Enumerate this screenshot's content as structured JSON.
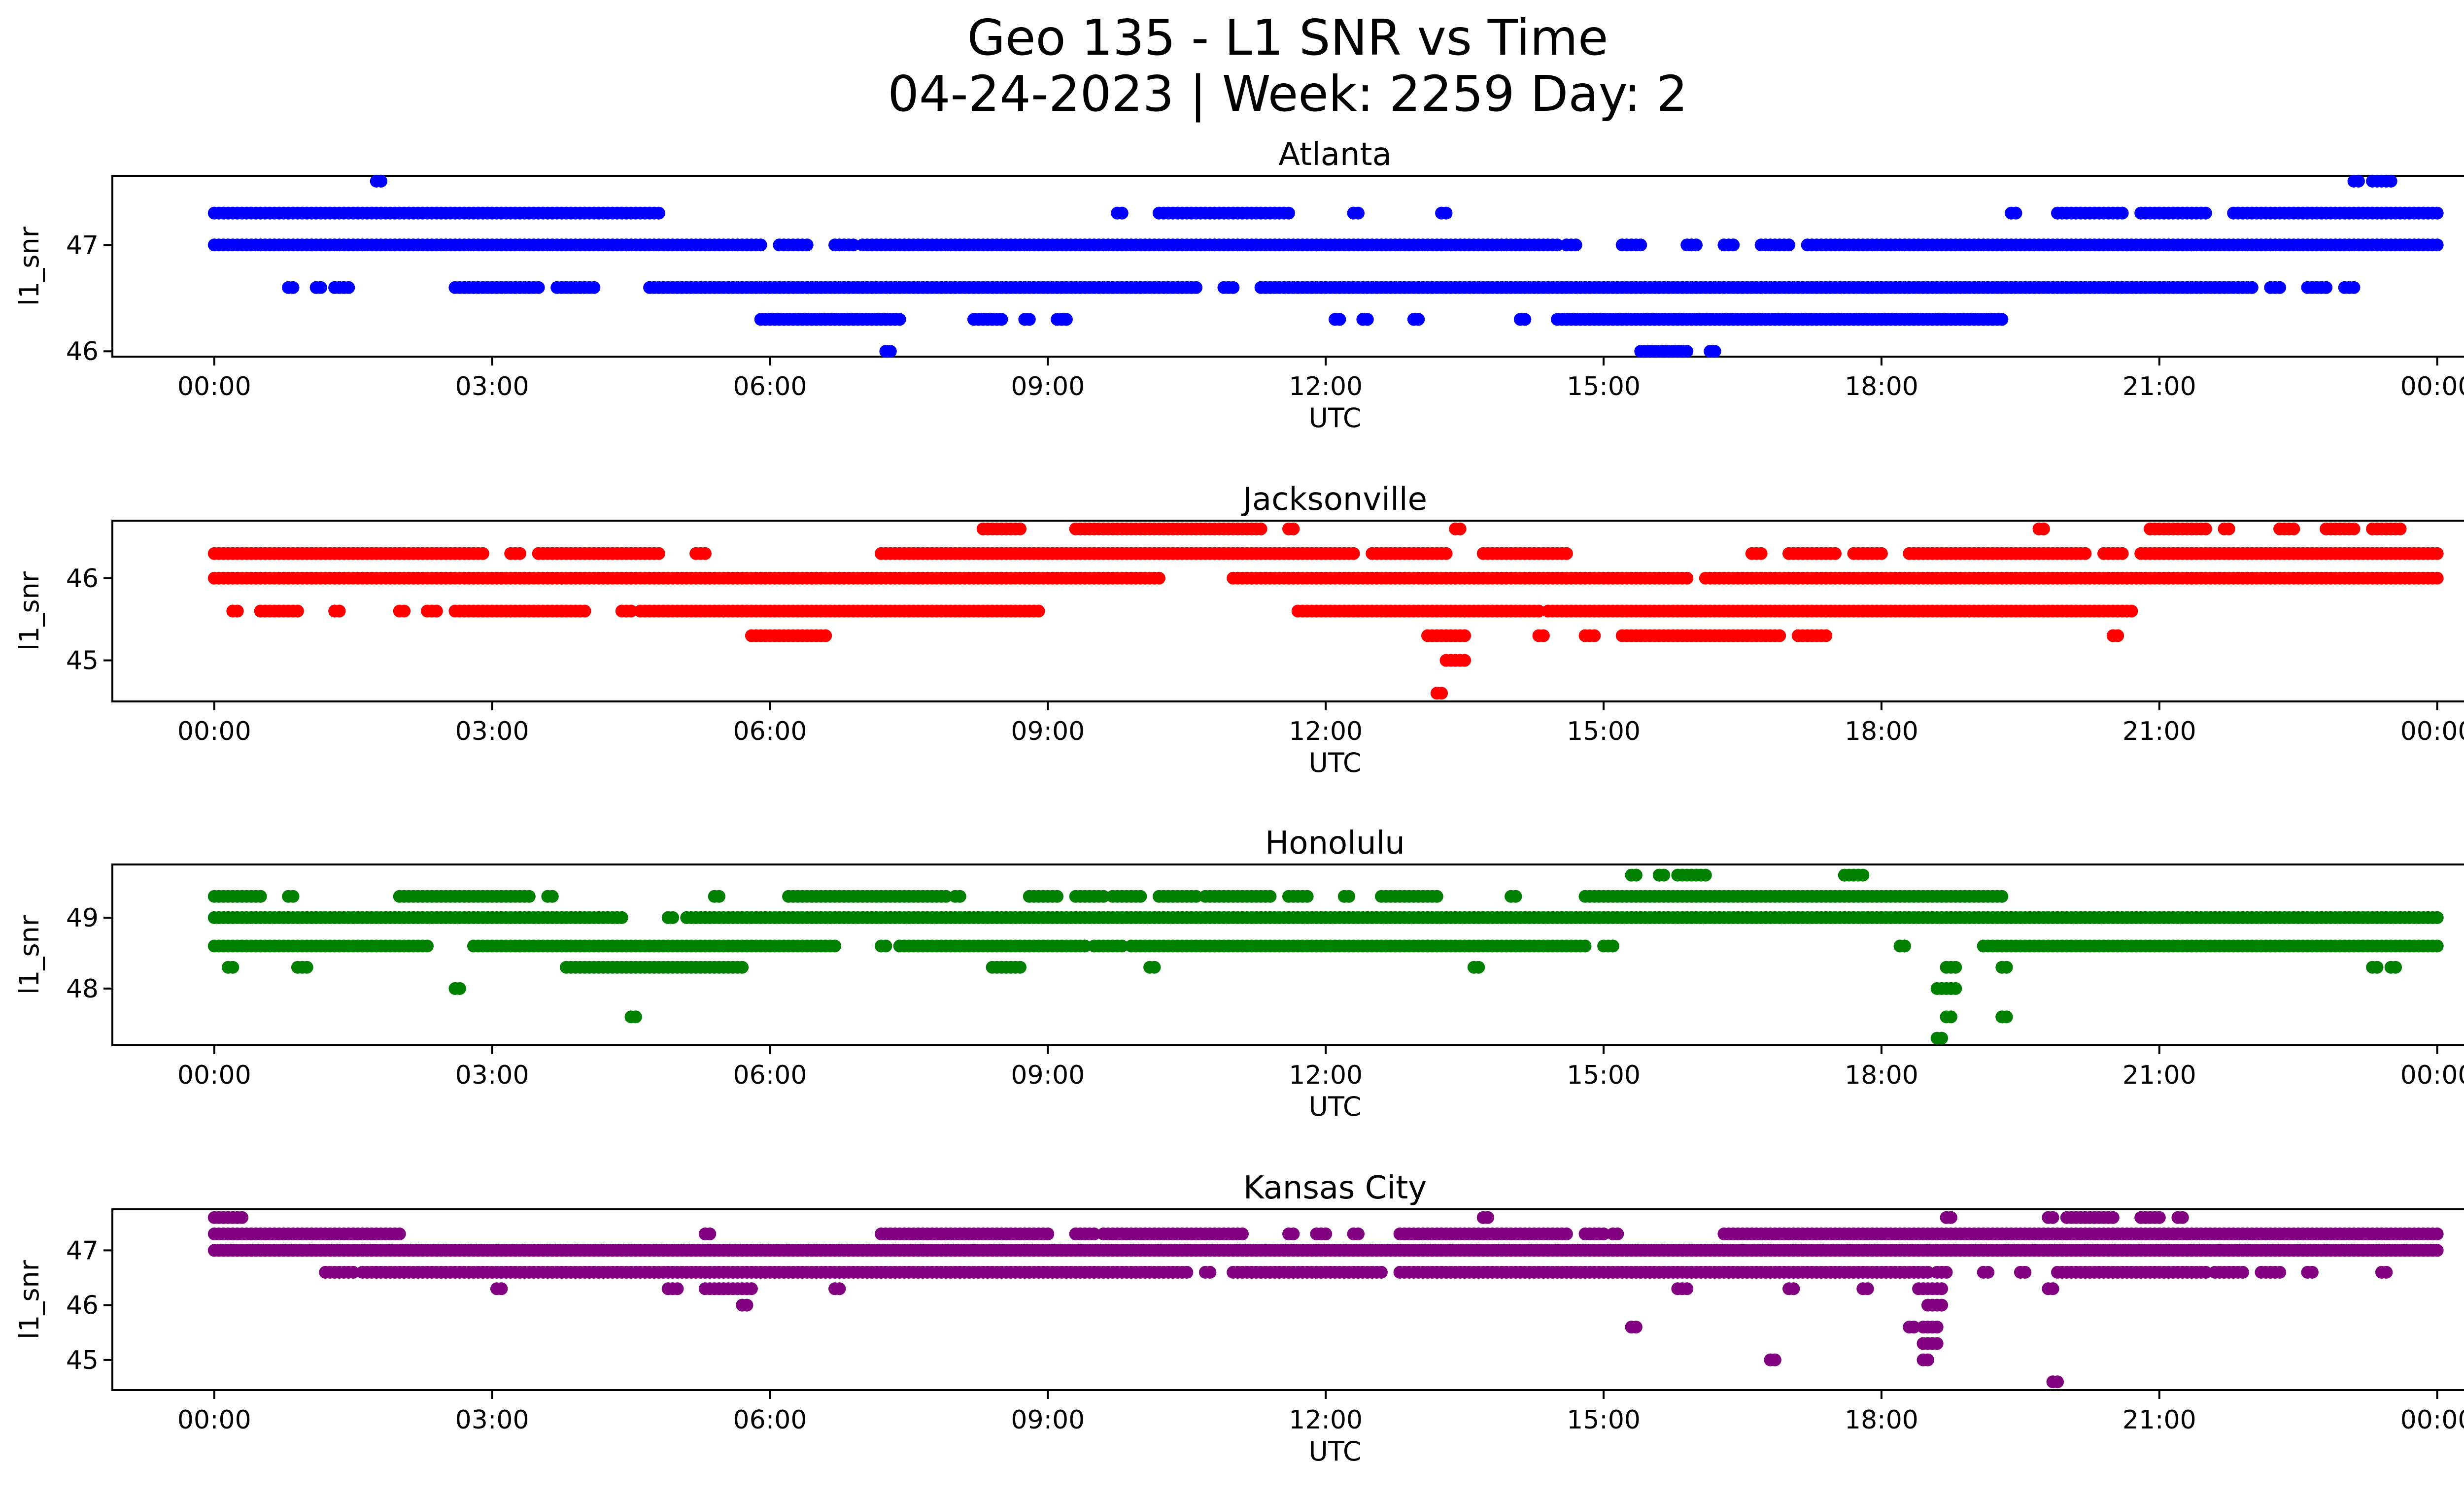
{
  "figure": {
    "title_line1": "Geo 135 - L1 SNR vs Time",
    "title_line2": "04-24-2023 | Week: 2259 Day: 2"
  },
  "chart_data": [
    {
      "type": "scatter",
      "title": "Atlanta",
      "xlabel": "UTC",
      "ylabel": "l1_snr",
      "color": "#0000ff",
      "xlim_hours": [
        -1.1,
        25.3
      ],
      "x_ticks": [
        "00:00",
        "03:00",
        "06:00",
        "09:00",
        "12:00",
        "15:00",
        "18:00",
        "21:00",
        "00:00"
      ],
      "ylim": [
        45.95,
        47.65
      ],
      "y_ticks": [
        46,
        47
      ],
      "points": [
        {
          "y": 47.3,
          "segments": [
            [
              0.0,
              4.8
            ],
            [
              9.75,
              9.8
            ],
            [
              10.2,
              11.6
            ],
            [
              12.3,
              12.35
            ],
            [
              13.25,
              13.3
            ],
            [
              19.4,
              19.45
            ],
            [
              19.9,
              20.6
            ],
            [
              20.8,
              21.5
            ],
            [
              21.8,
              24.0
            ]
          ]
        },
        {
          "y": 47.0,
          "segments": [
            [
              0.0,
              5.9
            ],
            [
              6.1,
              6.4
            ],
            [
              6.7,
              6.9
            ],
            [
              7.0,
              14.5
            ],
            [
              14.6,
              14.7
            ],
            [
              15.2,
              15.4
            ],
            [
              15.9,
              16.0
            ],
            [
              16.3,
              16.4
            ],
            [
              16.7,
              17.0
            ],
            [
              17.2,
              24.0
            ]
          ]
        },
        {
          "y": 46.6,
          "segments": [
            [
              0.8,
              0.85
            ],
            [
              1.1,
              1.15
            ],
            [
              1.3,
              1.45
            ],
            [
              2.6,
              3.5
            ],
            [
              3.7,
              4.1
            ],
            [
              4.7,
              10.6
            ],
            [
              10.9,
              11.0
            ],
            [
              11.3,
              22.0
            ],
            [
              22.2,
              22.3
            ],
            [
              22.6,
              22.8
            ],
            [
              23.0,
              23.1
            ]
          ]
        },
        {
          "y": 46.3,
          "segments": [
            [
              5.9,
              7.4
            ],
            [
              8.2,
              8.5
            ],
            [
              8.75,
              8.8
            ],
            [
              9.1,
              9.2
            ],
            [
              12.1,
              12.15
            ],
            [
              12.4,
              12.45
            ],
            [
              12.95,
              13.0
            ],
            [
              14.1,
              14.15
            ],
            [
              14.5,
              19.3
            ]
          ]
        },
        {
          "y": 46.0,
          "segments": [
            [
              7.25,
              7.3
            ],
            [
              15.4,
              15.9
            ],
            [
              16.15,
              16.2
            ]
          ]
        },
        {
          "y": 47.6,
          "segments": [
            [
              1.75,
              1.8
            ],
            [
              23.1,
              23.15
            ],
            [
              23.3,
              23.5
            ]
          ]
        }
      ]
    },
    {
      "type": "scatter",
      "title": "Jacksonville",
      "xlabel": "UTC",
      "ylabel": "l1_snr",
      "color": "#ff0000",
      "xlim_hours": [
        -1.1,
        25.3
      ],
      "x_ticks": [
        "00:00",
        "03:00",
        "06:00",
        "09:00",
        "12:00",
        "15:00",
        "18:00",
        "21:00",
        "00:00"
      ],
      "ylim": [
        44.5,
        46.7
      ],
      "y_ticks": [
        45,
        46
      ],
      "points": [
        {
          "y": 46.3,
          "segments": [
            [
              0.0,
              2.9
            ],
            [
              3.2,
              3.3
            ],
            [
              3.5,
              4.8
            ],
            [
              5.2,
              5.3
            ],
            [
              7.2,
              12.3
            ],
            [
              12.5,
              13.3
            ],
            [
              13.7,
              14.6
            ],
            [
              16.6,
              16.7
            ],
            [
              17.0,
              17.5
            ],
            [
              17.7,
              18.0
            ],
            [
              18.3,
              20.2
            ],
            [
              20.4,
              20.6
            ],
            [
              20.8,
              24.0
            ]
          ]
        },
        {
          "y": 46.0,
          "segments": [
            [
              0.0,
              10.2
            ],
            [
              11.0,
              15.9
            ],
            [
              16.1,
              24.0
            ]
          ]
        },
        {
          "y": 45.6,
          "segments": [
            [
              0.2,
              0.25
            ],
            [
              0.5,
              0.9
            ],
            [
              1.3,
              1.35
            ],
            [
              2.0,
              2.05
            ],
            [
              2.3,
              2.4
            ],
            [
              2.6,
              4.0
            ],
            [
              4.4,
              4.5
            ],
            [
              4.6,
              8.9
            ],
            [
              11.7,
              14.3
            ],
            [
              14.4,
              20.7
            ]
          ]
        },
        {
          "y": 46.6,
          "segments": [
            [
              8.3,
              8.7
            ],
            [
              9.3,
              11.3
            ],
            [
              11.6,
              11.65
            ],
            [
              13.4,
              13.45
            ],
            [
              19.7,
              19.75
            ],
            [
              20.9,
              21.5
            ],
            [
              21.7,
              21.75
            ],
            [
              22.3,
              22.45
            ],
            [
              22.8,
              23.1
            ],
            [
              23.3,
              23.6
            ]
          ]
        },
        {
          "y": 45.3,
          "segments": [
            [
              5.8,
              6.6
            ],
            [
              13.1,
              13.5
            ],
            [
              14.3,
              14.35
            ],
            [
              14.8,
              14.9
            ],
            [
              15.2,
              16.9
            ],
            [
              17.1,
              17.4
            ],
            [
              20.5,
              20.55
            ]
          ]
        },
        {
          "y": 45.0,
          "segments": [
            [
              13.3,
              13.5
            ]
          ]
        },
        {
          "y": 44.6,
          "segments": [
            [
              13.2,
              13.25
            ]
          ]
        }
      ]
    },
    {
      "type": "scatter",
      "title": "Honolulu",
      "xlabel": "UTC",
      "ylabel": "l1_snr",
      "color": "#008000",
      "xlim_hours": [
        -1.1,
        25.3
      ],
      "x_ticks": [
        "00:00",
        "03:00",
        "06:00",
        "09:00",
        "12:00",
        "15:00",
        "18:00",
        "21:00",
        "00:00"
      ],
      "ylim": [
        47.2,
        49.75
      ],
      "y_ticks": [
        48,
        49
      ],
      "points": [
        {
          "y": 49.3,
          "segments": [
            [
              0.0,
              0.5
            ],
            [
              0.8,
              0.85
            ],
            [
              2.0,
              3.4
            ],
            [
              3.6,
              3.65
            ],
            [
              5.4,
              5.45
            ],
            [
              6.2,
              7.9
            ],
            [
              8.0,
              8.05
            ],
            [
              8.8,
              9.1
            ],
            [
              9.3,
              9.6
            ],
            [
              9.7,
              10.0
            ],
            [
              10.2,
              10.6
            ],
            [
              10.7,
              11.4
            ],
            [
              11.6,
              11.8
            ],
            [
              12.2,
              12.25
            ],
            [
              12.6,
              13.2
            ],
            [
              14.0,
              14.05
            ],
            [
              14.8,
              19.3
            ]
          ]
        },
        {
          "y": 49.0,
          "segments": [
            [
              0.0,
              4.4
            ],
            [
              4.9,
              4.95
            ],
            [
              5.1,
              24.0
            ]
          ]
        },
        {
          "y": 48.6,
          "segments": [
            [
              0.0,
              2.3
            ],
            [
              2.8,
              3.3
            ],
            [
              3.3,
              6.7
            ],
            [
              7.2,
              7.25
            ],
            [
              7.4,
              9.4
            ],
            [
              9.5,
              9.8
            ],
            [
              9.9,
              13.1
            ],
            [
              13.1,
              14.8
            ],
            [
              15.0,
              15.1
            ],
            [
              18.2,
              18.25
            ],
            [
              19.1,
              24.0
            ]
          ]
        },
        {
          "y": 48.3,
          "segments": [
            [
              0.15,
              0.2
            ],
            [
              0.9,
              1.0
            ],
            [
              3.8,
              5.7
            ],
            [
              8.4,
              8.7
            ],
            [
              10.1,
              10.15
            ],
            [
              13.6,
              13.65
            ],
            [
              18.7,
              18.8
            ],
            [
              19.3,
              19.35
            ],
            [
              23.3,
              23.35
            ],
            [
              23.5,
              23.55
            ]
          ]
        },
        {
          "y": 49.6,
          "segments": [
            [
              15.3,
              15.35
            ],
            [
              15.6,
              15.65
            ],
            [
              15.8,
              16.1
            ],
            [
              17.6,
              17.8
            ]
          ]
        },
        {
          "y": 48.0,
          "segments": [
            [
              2.6,
              2.65
            ],
            [
              18.6,
              18.8
            ]
          ]
        },
        {
          "y": 47.6,
          "segments": [
            [
              4.5,
              4.55
            ],
            [
              18.7,
              18.75
            ],
            [
              19.3,
              19.35
            ]
          ]
        },
        {
          "y": 47.3,
          "segments": [
            [
              18.6,
              18.65
            ]
          ]
        }
      ]
    },
    {
      "type": "scatter",
      "title": "Kansas City",
      "xlabel": "UTC",
      "ylabel": "l1_snr",
      "color": "#800080",
      "xlim_hours": [
        -1.1,
        25.3
      ],
      "x_ticks": [
        "00:00",
        "03:00",
        "06:00",
        "09:00",
        "12:00",
        "15:00",
        "18:00",
        "21:00",
        "00:00"
      ],
      "ylim": [
        44.45,
        47.75
      ],
      "y_ticks": [
        45,
        46,
        47
      ],
      "points": [
        {
          "y": 47.3,
          "segments": [
            [
              0.0,
              2.0
            ],
            [
              5.3,
              5.35
            ],
            [
              7.2,
              9.0
            ],
            [
              9.3,
              9.5
            ],
            [
              9.6,
              11.1
            ],
            [
              11.6,
              11.65
            ],
            [
              11.9,
              12.0
            ],
            [
              12.3,
              12.35
            ],
            [
              12.8,
              14.6
            ],
            [
              14.8,
              15.0
            ],
            [
              15.1,
              15.15
            ],
            [
              16.3,
              24.0
            ]
          ]
        },
        {
          "y": 47.0,
          "segments": [
            [
              0.0,
              24.0
            ]
          ]
        },
        {
          "y": 46.6,
          "segments": [
            [
              1.2,
              1.5
            ],
            [
              1.6,
              10.5
            ],
            [
              10.7,
              10.75
            ],
            [
              11.0,
              12.6
            ],
            [
              12.8,
              18.5
            ],
            [
              18.6,
              18.7
            ],
            [
              19.1,
              19.15
            ],
            [
              19.5,
              19.55
            ],
            [
              19.9,
              21.5
            ],
            [
              21.6,
              21.9
            ],
            [
              22.1,
              22.3
            ],
            [
              22.6,
              22.65
            ],
            [
              23.4,
              23.45
            ]
          ]
        },
        {
          "y": 46.3,
          "segments": [
            [
              3.05,
              3.1
            ],
            [
              4.9,
              5.0
            ],
            [
              5.3,
              5.8
            ],
            [
              6.7,
              6.75
            ],
            [
              15.8,
              15.9
            ],
            [
              17.0,
              17.05
            ],
            [
              17.8,
              17.85
            ],
            [
              18.4,
              18.65
            ],
            [
              19.8,
              19.85
            ]
          ]
        },
        {
          "y": 46.0,
          "segments": [
            [
              5.7,
              5.75
            ],
            [
              18.5,
              18.65
            ]
          ]
        },
        {
          "y": 45.6,
          "segments": [
            [
              15.3,
              15.35
            ],
            [
              18.3,
              18.35
            ],
            [
              18.45,
              18.6
            ]
          ]
        },
        {
          "y": 45.3,
          "segments": [
            [
              18.45,
              18.6
            ]
          ]
        },
        {
          "y": 45.0,
          "segments": [
            [
              16.8,
              16.85
            ],
            [
              18.45,
              18.5
            ]
          ]
        },
        {
          "y": 44.6,
          "segments": [
            [
              19.85,
              19.9
            ]
          ]
        },
        {
          "y": 47.6,
          "segments": [
            [
              0.0,
              0.3
            ],
            [
              13.7,
              13.75
            ],
            [
              18.7,
              18.75
            ],
            [
              19.8,
              19.85
            ],
            [
              20.0,
              20.5
            ],
            [
              20.8,
              21.0
            ],
            [
              21.2,
              21.25
            ]
          ]
        }
      ]
    }
  ]
}
